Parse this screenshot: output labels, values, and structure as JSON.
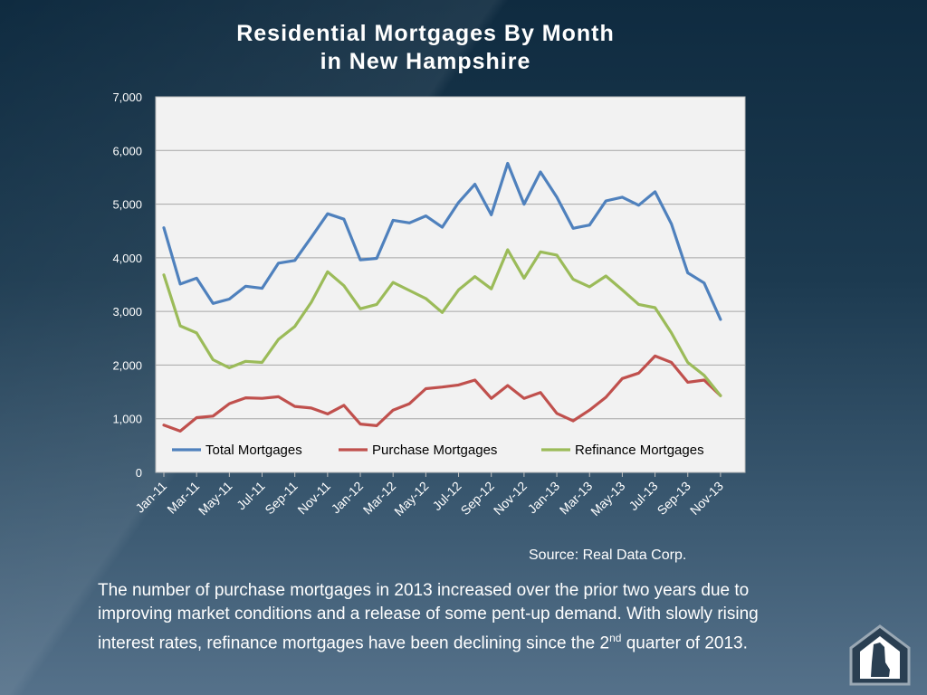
{
  "slide": {
    "title_line1": "Residential Mortgages By Month",
    "title_line2": "in New Hampshire",
    "source": "Source: Real Data Corp.",
    "body_part1": "The number of purchase mortgages in 2013 increased over the prior two years due to improving market conditions and a release of some pent-up demand.  With slowly rising interest rates, refinance mortgages have been declining since the 2",
    "body_sup": "nd",
    "body_part2": " quarter of 2013."
  },
  "chart_data": {
    "type": "line",
    "title": "Residential Mortgages By Month in New Hampshire",
    "xlabel": "",
    "ylabel": "",
    "ylim": [
      0,
      7000
    ],
    "yticks": [
      "0",
      "1,000",
      "2,000",
      "3,000",
      "4,000",
      "5,000",
      "6,000",
      "7,000"
    ],
    "categories": [
      "Jan-11",
      "Feb-11",
      "Mar-11",
      "Apr-11",
      "May-11",
      "Jun-11",
      "Jul-11",
      "Aug-11",
      "Sep-11",
      "Oct-11",
      "Nov-11",
      "Dec-11",
      "Jan-12",
      "Feb-12",
      "Mar-12",
      "Apr-12",
      "May-12",
      "Jun-12",
      "Jul-12",
      "Aug-12",
      "Sep-12",
      "Oct-12",
      "Nov-12",
      "Dec-12",
      "Jan-13",
      "Feb-13",
      "Mar-13",
      "Apr-13",
      "May-13",
      "Jun-13",
      "Jul-13",
      "Aug-13",
      "Sep-13",
      "Oct-13",
      "Nov-13",
      "Dec-13"
    ],
    "tick_labels": [
      "Jan-11",
      "Mar-11",
      "May-11",
      "Jul-11",
      "Sep-11",
      "Nov-11",
      "Jan-12",
      "Mar-12",
      "May-12",
      "Jul-12",
      "Sep-12",
      "Nov-12",
      "Jan-13",
      "Mar-13",
      "May-13",
      "Jul-13",
      "Sep-13",
      "Nov-13"
    ],
    "grid": true,
    "legend_position": "bottom-inside",
    "series": [
      {
        "name": "Total Mortgages",
        "color": "#4f81bd",
        "values": [
          4560,
          3510,
          3620,
          3150,
          3230,
          3470,
          3430,
          3900,
          3950,
          4380,
          4820,
          4720,
          3960,
          3990,
          4700,
          4650,
          4780,
          4570,
          5030,
          5370,
          4800,
          5760,
          5000,
          5600,
          5130,
          4550,
          4610,
          5060,
          5130,
          4980,
          5230,
          4630,
          3720,
          3530,
          2850,
          null
        ]
      },
      {
        "name": "Purchase Mortgages",
        "color": "#c0504d",
        "values": [
          880,
          770,
          1020,
          1050,
          1280,
          1390,
          1380,
          1410,
          1230,
          1200,
          1090,
          1250,
          900,
          870,
          1160,
          1280,
          1560,
          1590,
          1630,
          1720,
          1380,
          1620,
          1380,
          1490,
          1100,
          960,
          1160,
          1400,
          1750,
          1850,
          2170,
          2050,
          1680,
          1720,
          1430,
          null
        ]
      },
      {
        "name": "Refinance Mortgages",
        "color": "#9bbb59",
        "values": [
          3680,
          2730,
          2600,
          2100,
          1950,
          2070,
          2050,
          2480,
          2720,
          3170,
          3740,
          3480,
          3050,
          3130,
          3540,
          3390,
          3240,
          2980,
          3400,
          3650,
          3420,
          4150,
          3620,
          4110,
          4050,
          3600,
          3460,
          3660,
          3400,
          3130,
          3070,
          2600,
          2050,
          1810,
          1430,
          null
        ]
      }
    ]
  },
  "logo": {
    "icon": "new-hampshire-house-logo-icon"
  }
}
